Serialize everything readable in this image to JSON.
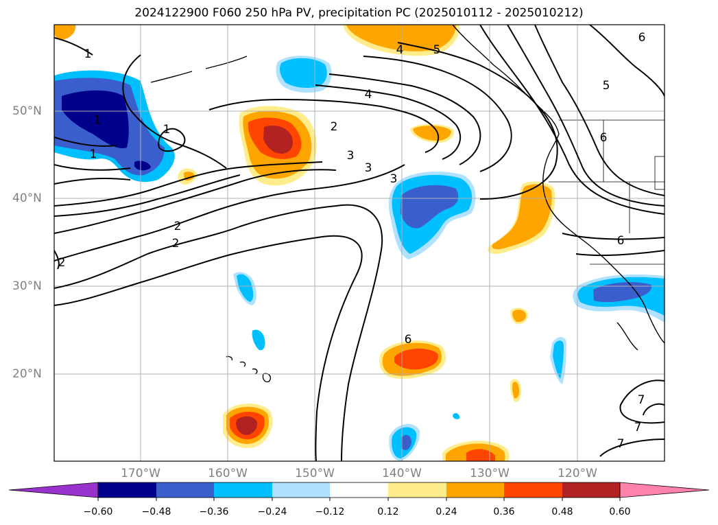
{
  "title": "2024122900 F060 250 hPa PV, precipitation PC (2025010112 - 2025010212)",
  "map": {
    "lat_labels": [
      "50°N",
      "40°N",
      "30°N",
      "20°N"
    ],
    "lon_labels": [
      "170°W",
      "160°W",
      "150°W",
      "140°W",
      "130°W",
      "120°W"
    ],
    "ocean_color": "#ffffff",
    "grid_color": "#b0b0b0",
    "pv_contour_labels": [
      "1",
      "1",
      "1",
      "1",
      "2",
      "2",
      "2",
      "2",
      "3",
      "3",
      "3",
      "4",
      "4",
      "5",
      "5",
      "6",
      "6",
      "6",
      "6",
      "7",
      "7",
      "7"
    ]
  },
  "colorbar": {
    "tick_labels": [
      "−0.60",
      "−0.48",
      "−0.36",
      "−0.24",
      "−0.12",
      "0.12",
      "0.24",
      "0.36",
      "0.48",
      "0.60"
    ],
    "colors": {
      "lt_-0.60": "#9932cc",
      "-0.60_-0.48": "#00008b",
      "-0.48_-0.36": "#3a5fcd",
      "-0.36_-0.24": "#00bfff",
      "-0.24_-0.12": "#b0e2ff",
      "-0.12_0.12": "#ffffff",
      "0.12_0.24": "#ffec8b",
      "0.24_0.36": "#ffa500",
      "0.36_0.48": "#ff4500",
      "0.48_0.60": "#b22222",
      "gt_0.60": "#ff82ab"
    }
  }
}
